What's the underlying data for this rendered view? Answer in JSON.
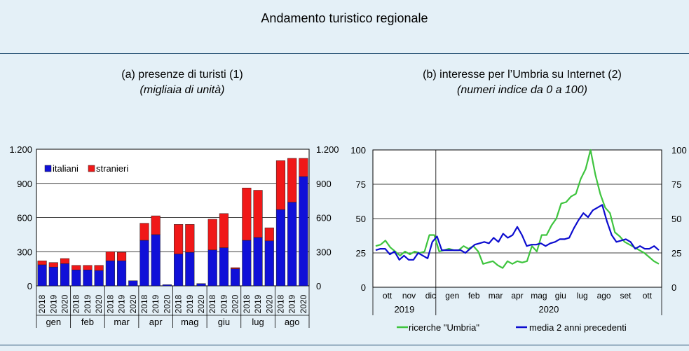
{
  "page": {
    "title": "Andamento turistico regionale"
  },
  "panels": {
    "a": {
      "title": "(a) presenze di turisti (1)",
      "subtitle": "(migliaia di unità)"
    },
    "b": {
      "title": "(b) interesse per l’Umbria su Internet (2)",
      "subtitle": "(numeri indice da 0 a 100)"
    }
  },
  "chart_data": [
    {
      "type": "bar",
      "stacked": true,
      "ylim": [
        0,
        1200
      ],
      "yticks": [
        0,
        300,
        600,
        900,
        1200
      ],
      "ytick_labels": [
        "0",
        "300",
        "600",
        "900",
        "1.200"
      ],
      "months": [
        "gen",
        "feb",
        "mar",
        "apr",
        "mag",
        "giu",
        "lug",
        "ago"
      ],
      "years": [
        "2018",
        "2019",
        "2020"
      ],
      "legend": {
        "placement": "top-left"
      },
      "series": [
        {
          "name": "italiani",
          "color": "#1010d8",
          "values": [
            [
              185,
              165,
              195
            ],
            [
              140,
              140,
              135
            ],
            [
              220,
              220,
              45
            ],
            [
              400,
              450,
              10
            ],
            [
              280,
              295,
              20
            ],
            [
              315,
              335,
              150
            ],
            [
              400,
              425,
              395
            ],
            [
              670,
              735,
              960
            ]
          ]
        },
        {
          "name": "stranieri",
          "color": "#f01818",
          "values": [
            [
              35,
              40,
              45
            ],
            [
              40,
              40,
              45
            ],
            [
              80,
              75,
              0
            ],
            [
              150,
              165,
              0
            ],
            [
              260,
              245,
              0
            ],
            [
              270,
              300,
              10
            ],
            [
              460,
              415,
              115
            ],
            [
              430,
              385,
              160
            ]
          ]
        }
      ]
    },
    {
      "type": "line",
      "ylim": [
        0,
        100
      ],
      "yticks": [
        0,
        25,
        50,
        75,
        100
      ],
      "grid": true,
      "x_month_labels": [
        "ott",
        "nov",
        "dic",
        "gen",
        "feb",
        "mar",
        "apr",
        "mag",
        "giu",
        "lug",
        "ago",
        "set",
        "ott"
      ],
      "x_year_labels": [
        "2019",
        "2020"
      ],
      "series": [
        {
          "name": "ricerche \"Umbria\"",
          "color": "#3ec43e",
          "values": [
            30,
            31,
            34,
            29,
            26,
            23,
            26,
            24,
            26,
            25,
            26,
            38,
            38,
            26,
            27,
            28,
            27,
            27,
            30,
            28,
            30,
            26,
            17,
            18,
            19,
            16,
            14,
            19,
            17,
            19,
            18,
            19,
            30,
            26,
            38,
            38,
            45,
            50,
            61,
            62,
            66,
            68,
            79,
            86,
            100,
            82,
            68,
            58,
            54,
            40,
            37,
            33,
            31,
            29,
            27,
            25,
            22,
            19,
            17
          ]
        },
        {
          "name": "media 2 anni precedenti",
          "color": "#0c0ccf",
          "values": [
            27,
            28,
            28,
            24,
            26,
            20,
            23,
            20,
            20,
            25,
            23,
            21,
            33,
            37,
            27,
            27,
            27,
            27,
            27,
            25,
            28,
            31,
            32,
            33,
            32,
            36,
            33,
            39,
            36,
            38,
            44,
            38,
            30,
            31,
            31,
            32,
            30,
            32,
            33,
            35,
            35,
            36,
            43,
            49,
            54,
            51,
            56,
            58,
            60,
            48,
            38,
            33,
            34,
            35,
            33,
            28,
            30,
            28,
            28,
            30,
            27
          ]
        }
      ]
    }
  ]
}
